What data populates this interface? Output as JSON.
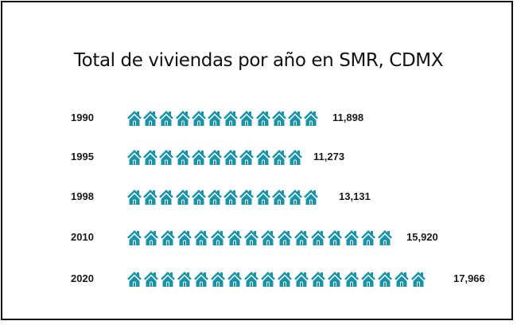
{
  "title": "Total de viviendas por año en  SMR, CDMX",
  "colors": {
    "icon": "#1a93a8",
    "text": "#1a1a1a",
    "border": "#111111"
  },
  "rows": [
    {
      "year": "1990",
      "value": "11,898",
      "icons": 12
    },
    {
      "year": "1995",
      "value": "11,273",
      "icons": 11
    },
    {
      "year": "1998",
      "value": "13,131",
      "icons": 12
    },
    {
      "year": "2010",
      "value": "15,920",
      "icons": 16
    },
    {
      "year": "2020",
      "value": "17,966",
      "icons": 18
    }
  ],
  "chart_data": {
    "type": "bar",
    "subtype": "pictograph",
    "title": "Total de viviendas por año en  SMR, CDMX",
    "categories": [
      "1990",
      "1995",
      "1998",
      "2010",
      "2020"
    ],
    "values": [
      11898,
      11273,
      13131,
      15920,
      17966
    ],
    "icon_counts": [
      12,
      11,
      12,
      16,
      18
    ],
    "icon": "house-icon",
    "orientation": "horizontal",
    "xlabel": "",
    "ylabel": "",
    "legend": "none",
    "grid": false
  }
}
